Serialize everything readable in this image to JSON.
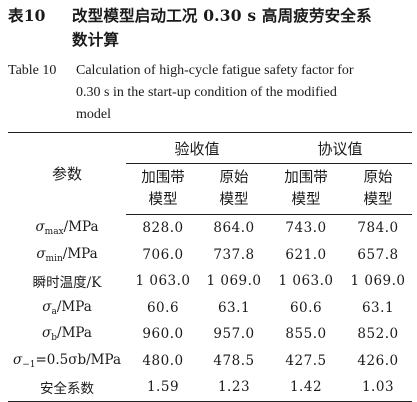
{
  "caption": {
    "cn_label": "表10",
    "cn_line1": "改型模型启动工况 0.30 s 高周疲劳安全系",
    "cn_line2": "数计算",
    "en_label": "Table 10",
    "en_line1": "Calculation of high-cycle fatigue safety factor for",
    "en_line2": "0.30 s in the start-up condition of the modified",
    "en_line3": "model"
  },
  "table": {
    "param_header": "参数",
    "group1": "验收值",
    "group2": "协议值",
    "sub_headers": [
      {
        "line1": "加围带",
        "line2": "模型"
      },
      {
        "line1": "原始",
        "line2": "模型"
      },
      {
        "line1": "加围带",
        "line2": "模型"
      },
      {
        "line1": "原始",
        "line2": "模型"
      }
    ],
    "rows": [
      {
        "sym": "σ",
        "sub": "max",
        "unit": "/MPa",
        "label": "",
        "values": [
          "828.0",
          "864.0",
          "743.0",
          "784.0"
        ]
      },
      {
        "sym": "σ",
        "sub": "min",
        "unit": "/MPa",
        "label": "",
        "values": [
          "706.0",
          "737.8",
          "621.0",
          "657.8"
        ]
      },
      {
        "sym": "",
        "sub": "",
        "unit": "",
        "label": "瞬时温度/K",
        "values": [
          "1 063.0",
          "1 069.0",
          "1 063.0",
          "1 069.0"
        ]
      },
      {
        "sym": "σ",
        "sub": "a",
        "unit": "/MPa",
        "label": "",
        "values": [
          "60.6",
          "63.1",
          "60.6",
          "63.1"
        ]
      },
      {
        "sym": "σ",
        "sub": "b",
        "unit": "/MPa",
        "label": "",
        "values": [
          "960.0",
          "957.0",
          "855.0",
          "852.0"
        ]
      },
      {
        "sym": "σ",
        "sub": "−1",
        "unit": "=0.5σb/MPa",
        "label": "",
        "values": [
          "480.0",
          "478.5",
          "427.5",
          "426.0"
        ]
      },
      {
        "sym": "",
        "sub": "",
        "unit": "",
        "label": "安全系数",
        "values": [
          "1.59",
          "1.23",
          "1.42",
          "1.03"
        ]
      }
    ]
  }
}
